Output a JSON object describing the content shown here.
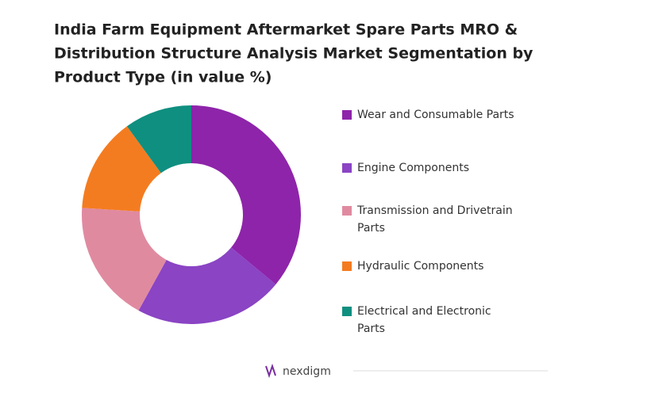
{
  "chart_data": {
    "type": "donut",
    "title_lines": [
      "India Farm Equipment Aftermarket Spare Parts MRO &",
      "Distribution Structure Analysis Market Segmentation by",
      "Product Type (in value %)"
    ],
    "categories": [
      "Wear and Consumable Parts",
      "Engine Components",
      "Transmission and Drivetrain Parts",
      "Hydraulic Components",
      "Electrical and Electronic Parts"
    ],
    "values": [
      36,
      22,
      18,
      14,
      10
    ],
    "colors": [
      "#8e24aa",
      "#8a44c4",
      "#e08aa0",
      "#f47c20",
      "#0f8f80"
    ],
    "legend": "right"
  },
  "footer": {
    "logo": "nexdigm"
  }
}
